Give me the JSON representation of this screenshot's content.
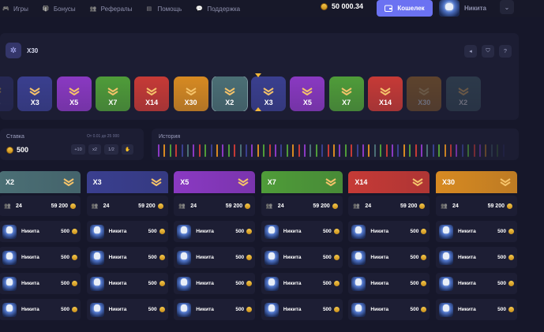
{
  "nav": [
    {
      "label": "Игры",
      "icon": "gamepad-icon"
    },
    {
      "label": "Бонусы",
      "icon": "gift-icon"
    },
    {
      "label": "Рефералы",
      "icon": "users-icon"
    },
    {
      "label": "Помощь",
      "icon": "help-icon"
    },
    {
      "label": "Поддержка",
      "icon": "chat-icon"
    }
  ],
  "header": {
    "balance": "50 000.34",
    "wallet_label": "Кошелек",
    "username": "Никита"
  },
  "game": {
    "mode_label": "X30",
    "strip": [
      {
        "label": "X3",
        "color": "#3a3f8f",
        "dim": true
      },
      {
        "label": "X3",
        "color": "#3a3f8f",
        "dim": false
      },
      {
        "label": "X5",
        "color": "#8a39c2",
        "dim": false
      },
      {
        "label": "X7",
        "color": "#4f9c39",
        "dim": false
      },
      {
        "label": "X14",
        "color": "#c63a36",
        "dim": false
      },
      {
        "label": "X30",
        "color": "#d78a22",
        "dim": false
      },
      {
        "label": "X2",
        "color": "#4b6f75",
        "dim": false,
        "selected": true
      },
      {
        "label": "X3",
        "color": "#3a3f8f",
        "dim": false
      },
      {
        "label": "X5",
        "color": "#8a39c2",
        "dim": false
      },
      {
        "label": "X7",
        "color": "#4f9c39",
        "dim": false
      },
      {
        "label": "X14",
        "color": "#c63a36",
        "dim": false
      },
      {
        "label": "X30",
        "color": "#d78a22",
        "dim": true
      },
      {
        "label": "X2",
        "color": "#4b6f75",
        "dim": true
      }
    ]
  },
  "bet": {
    "label": "Ставка",
    "range": "От 0.01 до 25 000",
    "amount": "500",
    "buttons": [
      "+10",
      "x2",
      "1/2"
    ]
  },
  "history": {
    "label": "История",
    "colors": [
      "#8a39c2",
      "#d78a22",
      "#4f9c39",
      "#c63a36",
      "#3a3f8f",
      "#4b6f75",
      "#8a39c2",
      "#c63a36",
      "#4f9c39",
      "#3a3f8f",
      "#d78a22",
      "#8a39c2",
      "#4f9c39",
      "#c63a36",
      "#4b6f75",
      "#3a3f8f",
      "#8a39c2",
      "#d78a22",
      "#4f9c39",
      "#c63a36",
      "#8a39c2",
      "#3a3f8f",
      "#4f9c39",
      "#d78a22",
      "#c63a36",
      "#8a39c2",
      "#4b6f75",
      "#4f9c39",
      "#3a3f8f",
      "#c63a36",
      "#d78a22",
      "#8a39c2",
      "#4f9c39",
      "#c63a36",
      "#3a3f8f",
      "#8a39c2",
      "#d78a22",
      "#4b6f75",
      "#4f9c39",
      "#c63a36",
      "#8a39c2",
      "#3a3f8f",
      "#d78a22",
      "#4f9c39",
      "#c63a36",
      "#8a39c2",
      "#4b6f75",
      "#3a3f8f",
      "#4f9c39",
      "#d78a22",
      "#c63a36",
      "#8a39c2",
      "#3a3f8f",
      "#4f9c39",
      "#c63a36",
      "#8a39c2",
      "#d78a22",
      "#4b6f75",
      "#4f9c39",
      "#3a3f8f"
    ]
  },
  "columns": [
    {
      "label": "X2",
      "color": "#4b6f75",
      "players": "24",
      "total": "59 200"
    },
    {
      "label": "X3",
      "color": "#3a3f8f",
      "players": "24",
      "total": "59 200"
    },
    {
      "label": "X5",
      "color": "#8a39c2",
      "players": "24",
      "total": "59 200"
    },
    {
      "label": "X7",
      "color": "#4f9c39",
      "players": "24",
      "total": "59 200"
    },
    {
      "label": "X14",
      "color": "#c63a36",
      "players": "24",
      "total": "59 200"
    },
    {
      "label": "X30",
      "color": "#d78a22",
      "players": "24",
      "total": "59 200"
    }
  ],
  "bets_rows": [
    {
      "name": "Никита",
      "amount": "500"
    },
    {
      "name": "Никита",
      "amount": "500"
    },
    {
      "name": "Никита",
      "amount": "500"
    },
    {
      "name": "Никита",
      "amount": "500"
    }
  ]
}
